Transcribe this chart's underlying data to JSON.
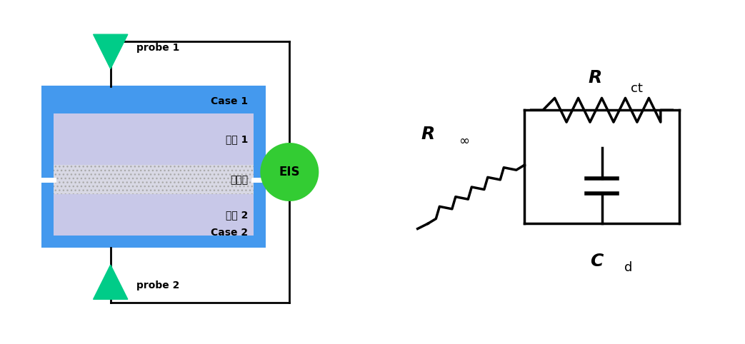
{
  "bg_color": "#ffffff",
  "blue_case_color": "#4499ee",
  "electrode_color": "#c8c8e8",
  "separator_color": "#e0e0e8",
  "eis_color": "#33cc33",
  "arrow_color": "#00cc88",
  "line_color": "#000000",
  "case1_label": "Case 1",
  "case2_label": "Case 2",
  "electrode1_label": "전극 1",
  "electrode2_label": "전극 2",
  "separator_label": "분리막",
  "eis_label": "EIS",
  "probe1_label": "probe 1",
  "probe2_label": "probe 2",
  "Rinf_label": "R",
  "Rinf_sub": "∞",
  "Rct_label": "R",
  "Rct_sub": "ct",
  "Cd_label": "C",
  "Cd_sub": "d"
}
